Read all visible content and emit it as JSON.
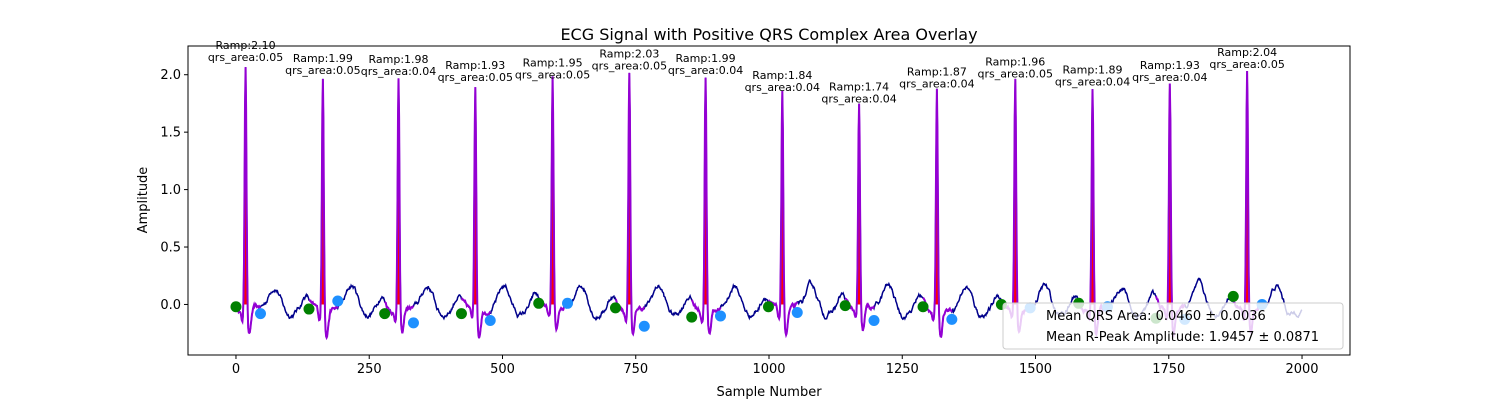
{
  "chart_data": {
    "type": "line",
    "title": "ECG Signal with Positive QRS Complex Area Overlay",
    "xlabel": "Sample Number",
    "ylabel": "Amplitude",
    "xlim": [
      -90,
      2090
    ],
    "ylim": [
      -0.44,
      2.25
    ],
    "xticks": [
      0,
      250,
      500,
      750,
      1000,
      1250,
      1500,
      1750,
      2000
    ],
    "yticks": [
      0.0,
      0.5,
      1.0,
      1.5,
      2.0
    ],
    "ytick_labels": [
      "0.0",
      "0.5",
      "1.0",
      "1.5",
      "2.0"
    ],
    "grid": false,
    "colors": {
      "signal": "#00008b",
      "qrs_segment": "#9400d3",
      "area_fill": "#ff0000",
      "onset_marker": "#008000",
      "offset_marker": "#1e90ff"
    },
    "beats": [
      {
        "r_x": 18,
        "r_amp": 2.1,
        "area_label": "Ramp:2.10",
        "qrs_label": "qrs_area:0.05",
        "onset": [
          0,
          -0.02
        ],
        "offset": [
          46,
          -0.08
        ]
      },
      {
        "r_x": 163,
        "r_amp": 1.99,
        "area_label": "Ramp:1.99",
        "qrs_label": "qrs_area:0.05",
        "onset": [
          137,
          -0.04
        ],
        "offset": [
          191,
          0.03
        ]
      },
      {
        "r_x": 305,
        "r_amp": 1.98,
        "area_label": "Ramp:1.98",
        "qrs_label": "qrs_area:0.04",
        "onset": [
          279,
          -0.08
        ],
        "offset": [
          333,
          -0.16
        ]
      },
      {
        "r_x": 449,
        "r_amp": 1.93,
        "area_label": "Ramp:1.93",
        "qrs_label": "qrs_area:0.05",
        "onset": [
          423,
          -0.08
        ],
        "offset": [
          477,
          -0.14
        ]
      },
      {
        "r_x": 594,
        "r_amp": 1.95,
        "area_label": "Ramp:1.95",
        "qrs_label": "qrs_area:0.05",
        "onset": [
          568,
          0.01
        ],
        "offset": [
          622,
          0.01
        ]
      },
      {
        "r_x": 738,
        "r_amp": 2.03,
        "area_label": "Ramp:2.03",
        "qrs_label": "qrs_area:0.05",
        "onset": [
          712,
          -0.03
        ],
        "offset": [
          766,
          -0.19
        ]
      },
      {
        "r_x": 881,
        "r_amp": 1.99,
        "area_label": "Ramp:1.99",
        "qrs_label": "qrs_area:0.04",
        "onset": [
          855,
          -0.11
        ],
        "offset": [
          909,
          -0.1
        ]
      },
      {
        "r_x": 1025,
        "r_amp": 1.84,
        "area_label": "Ramp:1.84",
        "qrs_label": "qrs_area:0.04",
        "onset": [
          999,
          -0.02
        ],
        "offset": [
          1053,
          -0.07
        ]
      },
      {
        "r_x": 1169,
        "r_amp": 1.74,
        "area_label": "Ramp:1.74",
        "qrs_label": "qrs_area:0.04",
        "onset": [
          1143,
          -0.01
        ],
        "offset": [
          1197,
          -0.14
        ]
      },
      {
        "r_x": 1315,
        "r_amp": 1.87,
        "area_label": "Ramp:1.87",
        "qrs_label": "qrs_area:0.04",
        "onset": [
          1289,
          -0.02
        ],
        "offset": [
          1343,
          -0.13
        ]
      },
      {
        "r_x": 1462,
        "r_amp": 1.96,
        "area_label": "Ramp:1.96",
        "qrs_label": "qrs_area:0.05",
        "onset": [
          1436,
          0.0
        ],
        "offset": [
          1490,
          -0.03
        ]
      },
      {
        "r_x": 1607,
        "r_amp": 1.89,
        "area_label": "Ramp:1.89",
        "qrs_label": "qrs_area:0.04",
        "onset": [
          1581,
          0.01
        ],
        "offset": [
          1635,
          -0.02
        ]
      },
      {
        "r_x": 1752,
        "r_amp": 1.93,
        "area_label": "Ramp:1.93",
        "qrs_label": "qrs_area:0.04",
        "onset": [
          1726,
          -0.12
        ],
        "offset": [
          1780,
          -0.13
        ]
      },
      {
        "r_x": 1897,
        "r_amp": 2.04,
        "area_label": "Ramp:2.04",
        "qrs_label": "qrs_area:0.05",
        "onset": [
          1871,
          0.07
        ],
        "offset": [
          1925,
          0.0
        ]
      }
    ],
    "legend": {
      "placement": "lower-right",
      "entries": [
        "Mean QRS Area: 0.0460 ± 0.0036",
        "Mean R-Peak Amplitude: 1.9457 ± 0.0871"
      ]
    }
  }
}
